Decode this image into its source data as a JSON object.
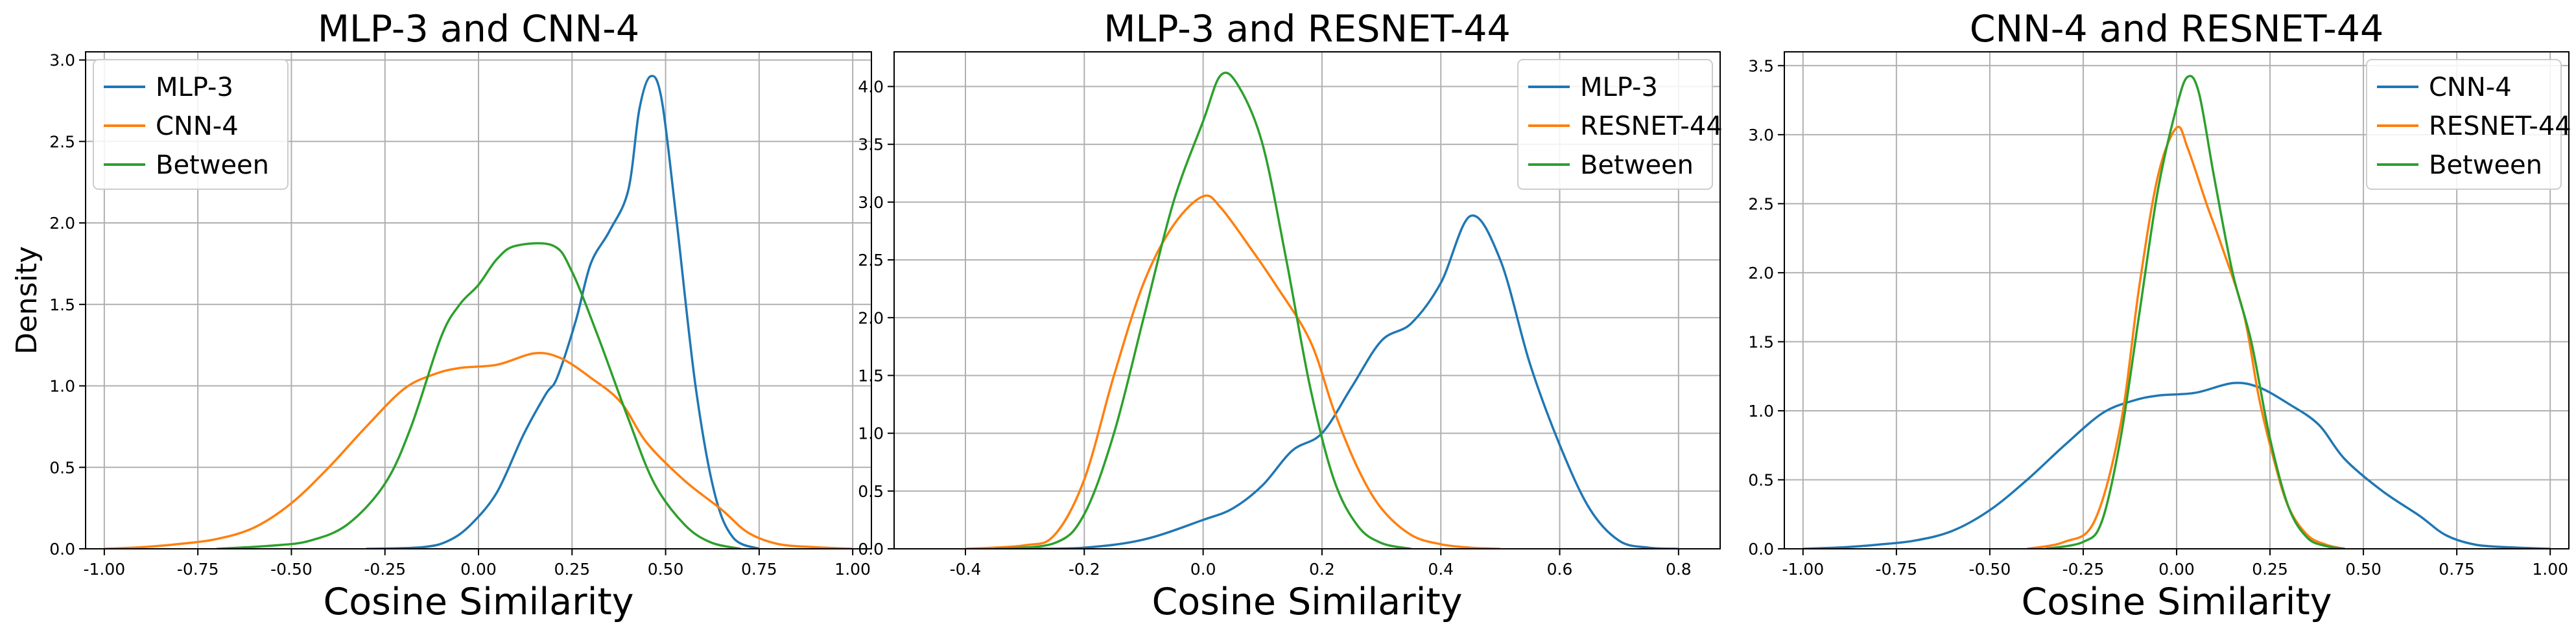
{
  "chart_data": [
    {
      "type": "line",
      "title": "MLP-3 and CNN-4",
      "xlabel": "Cosine Similarity",
      "ylabel": "Density",
      "xlim": [
        -1.05,
        1.05
      ],
      "ylim": [
        0,
        3.05
      ],
      "xticks": [
        -1.0,
        -0.75,
        -0.5,
        -0.25,
        0.0,
        0.25,
        0.5,
        0.75,
        1.0
      ],
      "xtick_labels": [
        "-1.00",
        "-0.75",
        "-0.50",
        "-0.25",
        "0.00",
        "0.25",
        "0.50",
        "0.75",
        "1.00"
      ],
      "yticks": [
        0,
        0.5,
        1.0,
        1.5,
        2.0,
        2.5,
        3.0
      ],
      "ytick_labels": [
        "0.0",
        "0.5",
        "1.0",
        "1.5",
        "2.0",
        "2.5",
        "3.0"
      ],
      "grid": true,
      "legend_position": "top-left",
      "series": [
        {
          "name": "MLP-3",
          "color": "#1f77b4",
          "points": [
            [
              -0.3,
              0
            ],
            [
              -0.15,
              0.01
            ],
            [
              -0.08,
              0.05
            ],
            [
              -0.02,
              0.15
            ],
            [
              0.05,
              0.35
            ],
            [
              0.12,
              0.7
            ],
            [
              0.18,
              0.95
            ],
            [
              0.21,
              1.05
            ],
            [
              0.26,
              1.4
            ],
            [
              0.3,
              1.75
            ],
            [
              0.35,
              1.95
            ],
            [
              0.4,
              2.2
            ],
            [
              0.43,
              2.7
            ],
            [
              0.46,
              2.9
            ],
            [
              0.49,
              2.75
            ],
            [
              0.53,
              2.0
            ],
            [
              0.58,
              1.0
            ],
            [
              0.63,
              0.35
            ],
            [
              0.68,
              0.07
            ],
            [
              0.75,
              0
            ]
          ]
        },
        {
          "name": "CNN-4",
          "color": "#ff7f0e",
          "points": [
            [
              -1.0,
              0
            ],
            [
              -0.9,
              0.01
            ],
            [
              -0.8,
              0.03
            ],
            [
              -0.7,
              0.06
            ],
            [
              -0.6,
              0.13
            ],
            [
              -0.5,
              0.28
            ],
            [
              -0.4,
              0.5
            ],
            [
              -0.3,
              0.75
            ],
            [
              -0.2,
              0.98
            ],
            [
              -0.12,
              1.07
            ],
            [
              -0.05,
              1.11
            ],
            [
              0.05,
              1.13
            ],
            [
              0.15,
              1.2
            ],
            [
              0.22,
              1.17
            ],
            [
              0.3,
              1.05
            ],
            [
              0.38,
              0.9
            ],
            [
              0.45,
              0.65
            ],
            [
              0.55,
              0.42
            ],
            [
              0.65,
              0.24
            ],
            [
              0.72,
              0.1
            ],
            [
              0.8,
              0.03
            ],
            [
              0.9,
              0.01
            ],
            [
              1.0,
              0
            ]
          ]
        },
        {
          "name": "Between",
          "color": "#2ca02c",
          "points": [
            [
              -0.7,
              0
            ],
            [
              -0.55,
              0.02
            ],
            [
              -0.45,
              0.05
            ],
            [
              -0.35,
              0.15
            ],
            [
              -0.25,
              0.4
            ],
            [
              -0.18,
              0.75
            ],
            [
              -0.1,
              1.3
            ],
            [
              -0.05,
              1.5
            ],
            [
              0.0,
              1.62
            ],
            [
              0.05,
              1.78
            ],
            [
              0.1,
              1.86
            ],
            [
              0.2,
              1.86
            ],
            [
              0.25,
              1.7
            ],
            [
              0.32,
              1.3
            ],
            [
              0.4,
              0.8
            ],
            [
              0.47,
              0.4
            ],
            [
              0.55,
              0.15
            ],
            [
              0.62,
              0.04
            ],
            [
              0.7,
              0
            ]
          ]
        }
      ]
    },
    {
      "type": "line",
      "title": "MLP-3 and RESNET-44",
      "xlabel": "Cosine Similarity",
      "ylabel": "",
      "xlim": [
        -0.52,
        0.87
      ],
      "ylim": [
        0,
        4.3
      ],
      "xticks": [
        -0.4,
        -0.2,
        0.0,
        0.2,
        0.4,
        0.6,
        0.8
      ],
      "xtick_labels": [
        "-0.4",
        "-0.2",
        "0.0",
        "0.2",
        "0.4",
        "0.6",
        "0.8"
      ],
      "yticks": [
        0,
        0.5,
        1.0,
        1.5,
        2.0,
        2.5,
        3.0,
        3.5,
        4.0
      ],
      "ytick_labels": [
        "0.0",
        "0.5",
        "1.0",
        "1.5",
        "2.0",
        "2.5",
        "3.0",
        "3.5",
        "4.0"
      ],
      "grid": true,
      "legend_position": "top-right",
      "series": [
        {
          "name": "MLP-3",
          "color": "#1f77b4",
          "points": [
            [
              -0.3,
              0
            ],
            [
              -0.2,
              0.01
            ],
            [
              -0.1,
              0.08
            ],
            [
              0.0,
              0.25
            ],
            [
              0.05,
              0.35
            ],
            [
              0.1,
              0.55
            ],
            [
              0.15,
              0.85
            ],
            [
              0.2,
              1.0
            ],
            [
              0.25,
              1.4
            ],
            [
              0.3,
              1.8
            ],
            [
              0.35,
              1.95
            ],
            [
              0.4,
              2.3
            ],
            [
              0.45,
              2.88
            ],
            [
              0.5,
              2.5
            ],
            [
              0.55,
              1.6
            ],
            [
              0.6,
              0.9
            ],
            [
              0.65,
              0.35
            ],
            [
              0.7,
              0.07
            ],
            [
              0.75,
              0.01
            ],
            [
              0.8,
              0
            ]
          ]
        },
        {
          "name": "RESNET-44",
          "color": "#ff7f0e",
          "points": [
            [
              -0.4,
              0
            ],
            [
              -0.3,
              0.03
            ],
            [
              -0.25,
              0.12
            ],
            [
              -0.2,
              0.6
            ],
            [
              -0.15,
              1.5
            ],
            [
              -0.1,
              2.3
            ],
            [
              -0.05,
              2.8
            ],
            [
              0.0,
              3.05
            ],
            [
              0.03,
              2.95
            ],
            [
              0.08,
              2.6
            ],
            [
              0.12,
              2.3
            ],
            [
              0.18,
              1.8
            ],
            [
              0.22,
              1.2
            ],
            [
              0.26,
              0.7
            ],
            [
              0.3,
              0.35
            ],
            [
              0.35,
              0.12
            ],
            [
              0.4,
              0.04
            ],
            [
              0.45,
              0.01
            ],
            [
              0.5,
              0
            ]
          ]
        },
        {
          "name": "Between",
          "color": "#2ca02c",
          "points": [
            [
              -0.35,
              0
            ],
            [
              -0.25,
              0.05
            ],
            [
              -0.2,
              0.3
            ],
            [
              -0.15,
              1.0
            ],
            [
              -0.1,
              2.0
            ],
            [
              -0.05,
              3.0
            ],
            [
              0.0,
              3.7
            ],
            [
              0.03,
              4.1
            ],
            [
              0.06,
              4.0
            ],
            [
              0.1,
              3.5
            ],
            [
              0.14,
              2.5
            ],
            [
              0.18,
              1.4
            ],
            [
              0.22,
              0.6
            ],
            [
              0.26,
              0.2
            ],
            [
              0.3,
              0.05
            ],
            [
              0.35,
              0
            ]
          ]
        }
      ]
    },
    {
      "type": "line",
      "title": "CNN-4 and RESNET-44",
      "xlabel": "Cosine Similarity",
      "ylabel": "",
      "xlim": [
        -1.05,
        1.05
      ],
      "ylim": [
        0,
        3.6
      ],
      "xticks": [
        -1.0,
        -0.75,
        -0.5,
        -0.25,
        0.0,
        0.25,
        0.5,
        0.75,
        1.0
      ],
      "xtick_labels": [
        "-1.00",
        "-0.75",
        "-0.50",
        "-0.25",
        "0.00",
        "0.25",
        "0.50",
        "0.75",
        "1.00"
      ],
      "yticks": [
        0,
        0.5,
        1.0,
        1.5,
        2.0,
        2.5,
        3.0,
        3.5
      ],
      "ytick_labels": [
        "0.0",
        "0.5",
        "1.0",
        "1.5",
        "2.0",
        "2.5",
        "3.0",
        "3.5"
      ],
      "grid": true,
      "legend_position": "top-right",
      "series": [
        {
          "name": "CNN-4",
          "color": "#1f77b4",
          "points": [
            [
              -1.0,
              0
            ],
            [
              -0.9,
              0.01
            ],
            [
              -0.8,
              0.03
            ],
            [
              -0.7,
              0.06
            ],
            [
              -0.6,
              0.13
            ],
            [
              -0.5,
              0.28
            ],
            [
              -0.4,
              0.5
            ],
            [
              -0.3,
              0.75
            ],
            [
              -0.2,
              0.98
            ],
            [
              -0.12,
              1.07
            ],
            [
              -0.05,
              1.11
            ],
            [
              0.05,
              1.13
            ],
            [
              0.15,
              1.2
            ],
            [
              0.22,
              1.17
            ],
            [
              0.3,
              1.05
            ],
            [
              0.38,
              0.9
            ],
            [
              0.45,
              0.65
            ],
            [
              0.55,
              0.42
            ],
            [
              0.65,
              0.24
            ],
            [
              0.72,
              0.1
            ],
            [
              0.8,
              0.03
            ],
            [
              0.9,
              0.01
            ],
            [
              1.0,
              0
            ]
          ]
        },
        {
          "name": "RESNET-44",
          "color": "#ff7f0e",
          "points": [
            [
              -0.4,
              0
            ],
            [
              -0.3,
              0.05
            ],
            [
              -0.22,
              0.2
            ],
            [
              -0.15,
              0.9
            ],
            [
              -0.1,
              1.9
            ],
            [
              -0.05,
              2.7
            ],
            [
              0.0,
              3.05
            ],
            [
              0.03,
              2.9
            ],
            [
              0.08,
              2.5
            ],
            [
              0.12,
              2.2
            ],
            [
              0.18,
              1.7
            ],
            [
              0.22,
              1.1
            ],
            [
              0.26,
              0.65
            ],
            [
              0.3,
              0.3
            ],
            [
              0.35,
              0.1
            ],
            [
              0.4,
              0.03
            ],
            [
              0.45,
              0
            ]
          ]
        },
        {
          "name": "Between",
          "color": "#2ca02c",
          "points": [
            [
              -0.35,
              0
            ],
            [
              -0.25,
              0.05
            ],
            [
              -0.2,
              0.2
            ],
            [
              -0.15,
              0.8
            ],
            [
              -0.1,
              1.7
            ],
            [
              -0.05,
              2.6
            ],
            [
              0.0,
              3.2
            ],
            [
              0.03,
              3.42
            ],
            [
              0.06,
              3.3
            ],
            [
              0.1,
              2.7
            ],
            [
              0.15,
              2.0
            ],
            [
              0.2,
              1.5
            ],
            [
              0.25,
              0.8
            ],
            [
              0.3,
              0.3
            ],
            [
              0.35,
              0.08
            ],
            [
              0.4,
              0.02
            ],
            [
              0.45,
              0
            ]
          ]
        }
      ]
    }
  ]
}
